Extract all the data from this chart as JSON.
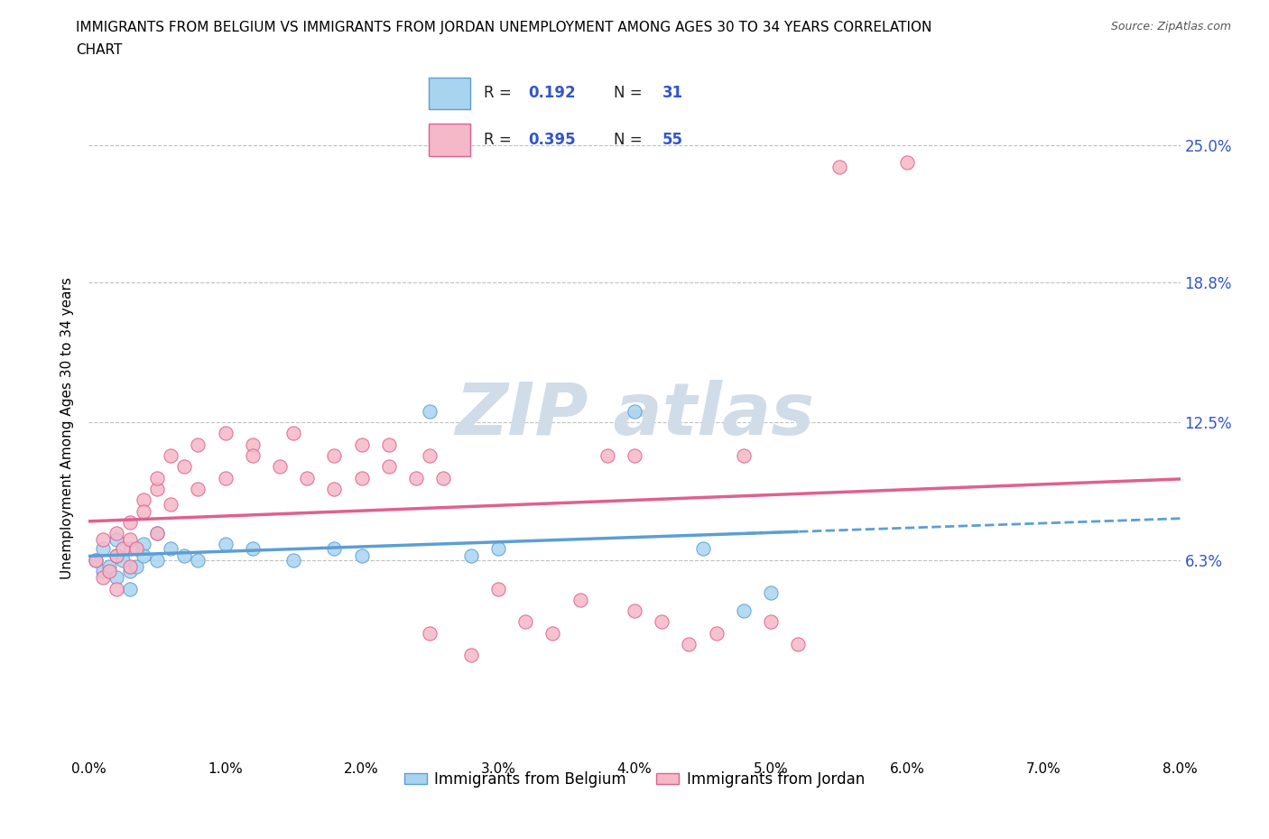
{
  "title_line1": "IMMIGRANTS FROM BELGIUM VS IMMIGRANTS FROM JORDAN UNEMPLOYMENT AMONG AGES 30 TO 34 YEARS CORRELATION",
  "title_line2": "CHART",
  "source": "Source: ZipAtlas.com",
  "ylabel": "Unemployment Among Ages 30 to 34 years",
  "xlim": [
    0.0,
    0.08
  ],
  "ylim": [
    -0.025,
    0.27
  ],
  "yticks": [
    0.063,
    0.125,
    0.188,
    0.25
  ],
  "ytick_labels": [
    "6.3%",
    "12.5%",
    "18.8%",
    "25.0%"
  ],
  "xticks": [
    0.0,
    0.01,
    0.02,
    0.03,
    0.04,
    0.05,
    0.06,
    0.07,
    0.08
  ],
  "xtick_labels": [
    "0.0%",
    "1.0%",
    "2.0%",
    "3.0%",
    "4.0%",
    "5.0%",
    "6.0%",
    "7.0%",
    "8.0%"
  ],
  "belgium_color": "#a8d4f0",
  "jordan_color": "#f5b8c8",
  "belgium_edge_color": "#5b9fd4",
  "jordan_edge_color": "#e06090",
  "belgium_line_color": "#5b9fd4",
  "jordan_line_color": "#e06090",
  "watermark_color": "#d0dce8",
  "tick_color": "#3355cc",
  "grid_color": "#c0c0c0",
  "belgium_R": "0.192",
  "belgium_N": "31",
  "jordan_R": "0.395",
  "jordan_N": "55",
  "legend_label_belgium": "Immigrants from Belgium",
  "legend_label_jordan": "Immigrants from Jordan",
  "belgium_x": [
    0.0005,
    0.001,
    0.001,
    0.0015,
    0.002,
    0.002,
    0.002,
    0.0025,
    0.003,
    0.003,
    0.003,
    0.0035,
    0.004,
    0.004,
    0.005,
    0.005,
    0.006,
    0.007,
    0.008,
    0.01,
    0.012,
    0.015,
    0.018,
    0.02,
    0.025,
    0.028,
    0.03,
    0.04,
    0.045,
    0.048,
    0.05
  ],
  "belgium_y": [
    0.063,
    0.058,
    0.068,
    0.06,
    0.055,
    0.065,
    0.072,
    0.063,
    0.05,
    0.058,
    0.068,
    0.06,
    0.07,
    0.065,
    0.063,
    0.075,
    0.068,
    0.065,
    0.063,
    0.07,
    0.068,
    0.063,
    0.068,
    0.065,
    0.13,
    0.065,
    0.068,
    0.13,
    0.068,
    0.04,
    0.048
  ],
  "jordan_x": [
    0.0005,
    0.001,
    0.001,
    0.0015,
    0.002,
    0.002,
    0.002,
    0.0025,
    0.003,
    0.003,
    0.003,
    0.0035,
    0.004,
    0.004,
    0.005,
    0.005,
    0.005,
    0.006,
    0.006,
    0.007,
    0.008,
    0.008,
    0.01,
    0.01,
    0.012,
    0.012,
    0.014,
    0.015,
    0.016,
    0.018,
    0.018,
    0.02,
    0.02,
    0.022,
    0.022,
    0.024,
    0.025,
    0.025,
    0.026,
    0.028,
    0.03,
    0.032,
    0.034,
    0.036,
    0.038,
    0.04,
    0.04,
    0.042,
    0.044,
    0.046,
    0.048,
    0.05,
    0.052,
    0.055,
    0.06
  ],
  "jordan_y": [
    0.063,
    0.055,
    0.072,
    0.058,
    0.065,
    0.05,
    0.075,
    0.068,
    0.06,
    0.08,
    0.072,
    0.068,
    0.09,
    0.085,
    0.075,
    0.095,
    0.1,
    0.088,
    0.11,
    0.105,
    0.095,
    0.115,
    0.12,
    0.1,
    0.115,
    0.11,
    0.105,
    0.12,
    0.1,
    0.095,
    0.11,
    0.115,
    0.1,
    0.105,
    0.115,
    0.1,
    0.11,
    0.03,
    0.1,
    0.02,
    0.05,
    0.035,
    0.03,
    0.045,
    0.11,
    0.11,
    0.04,
    0.035,
    0.025,
    0.03,
    0.11,
    0.035,
    0.025,
    0.24,
    0.242
  ]
}
